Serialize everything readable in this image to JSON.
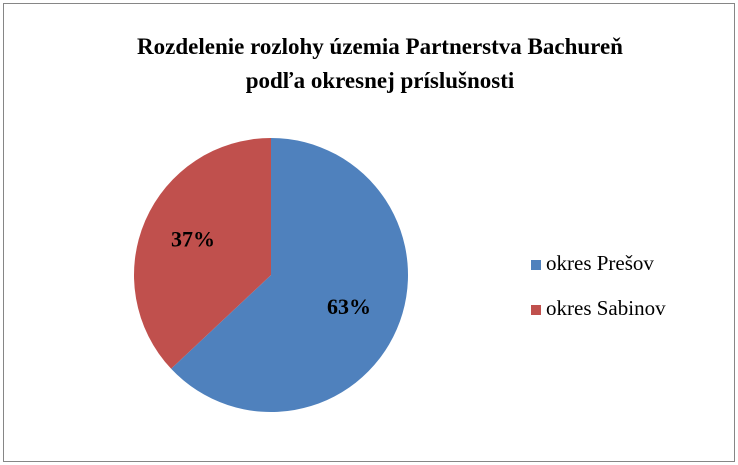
{
  "chart_data": {
    "type": "pie",
    "title": "Rozdelenie rozlohy územia Partnerstva Bachureň\npodľa okresnej príslušnosti",
    "categories": [
      "okres Prešov",
      "okres Sabinov"
    ],
    "values": [
      63,
      37
    ],
    "value_labels": [
      "63%",
      "37%"
    ],
    "colors": [
      "#4f81bd",
      "#c0504d"
    ],
    "legend": "right"
  }
}
